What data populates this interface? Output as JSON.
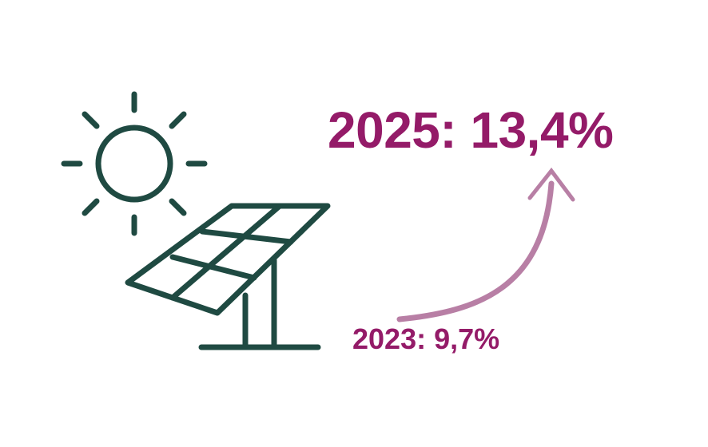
{
  "colors": {
    "accent": "#941b68",
    "arrow": "#b87fa5",
    "icon": "#1f4a42"
  },
  "icons": [
    "sun-icon",
    "solar-panel-icon",
    "trend-arrow-icon"
  ],
  "values": {
    "current": "2025: 13,4%",
    "previous": "2023: 9,7%"
  }
}
